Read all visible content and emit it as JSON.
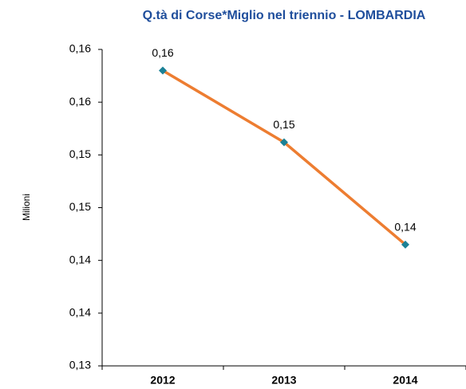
{
  "chart_data": {
    "type": "line",
    "title": "Q.tà di Corse*Miglio nel triennio - LOMBARDIA",
    "y_label": "Milioni",
    "categories": [
      "2012",
      "2013",
      "2014"
    ],
    "series": [
      {
        "name": "Q.tà di Corse*Miglio",
        "color": "#ed7d31",
        "marker_color": "#1b8196",
        "values": [
          0.158,
          0.1512,
          0.1415
        ],
        "value_labels": [
          "0,16",
          "0,15",
          "0,14"
        ]
      }
    ],
    "ylim": [
      0.13,
      0.16
    ],
    "yticks": [
      {
        "value": 0.13,
        "label": "0,13"
      },
      {
        "value": 0.135,
        "label": "0,14"
      },
      {
        "value": 0.14,
        "label": "0,14"
      },
      {
        "value": 0.145,
        "label": "0,15"
      },
      {
        "value": 0.15,
        "label": "0,15"
      },
      {
        "value": 0.155,
        "label": "0,16"
      },
      {
        "value": 0.16,
        "label": "0,16"
      }
    ],
    "grid": false
  }
}
